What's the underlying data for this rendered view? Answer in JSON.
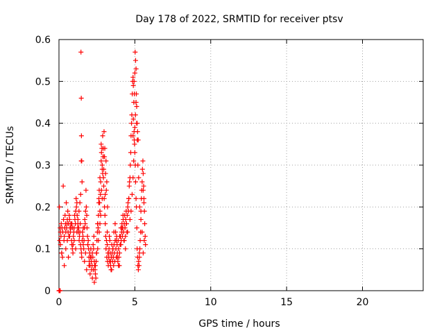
{
  "chart_data": {
    "type": "scatter",
    "title": "Day 178 of 2022, SRMTID for receiver ptsv",
    "xlabel": "GPS time / hours",
    "ylabel": "SRMTID / TECUs",
    "xlim": [
      0,
      24
    ],
    "ylim": [
      0,
      0.6
    ],
    "xticks": [
      0,
      5,
      10,
      15,
      20
    ],
    "xtick_labels": [
      "0",
      "5",
      "10",
      "15",
      "20"
    ],
    "yticks": [
      0,
      0.1,
      0.2,
      0.3,
      0.4,
      0.5,
      0.6
    ],
    "ytick_labels": [
      "0",
      "0.1",
      "0.2",
      "0.3",
      "0.4",
      "0.5",
      "0.6"
    ],
    "grid": true,
    "marker": "+",
    "color": "#ff0000",
    "series": [
      {
        "name": "ptsv",
        "x": [
          0.0,
          0.03,
          0.05,
          0.08,
          0.1,
          0.13,
          0.15,
          0.18,
          0.2,
          0.23,
          0.25,
          0.28,
          0.3,
          0.33,
          0.35,
          0.38,
          0.4,
          0.43,
          0.45,
          0.48,
          0.5,
          0.53,
          0.55,
          0.58,
          0.6,
          0.63,
          0.65,
          0.68,
          0.7,
          0.73,
          0.75,
          0.78,
          0.8,
          0.83,
          0.85,
          0.88,
          0.9,
          0.93,
          0.95,
          0.98,
          1.0,
          1.03,
          1.05,
          1.08,
          1.1,
          1.13,
          1.15,
          1.18,
          1.2,
          1.23,
          1.25,
          1.28,
          1.3,
          1.33,
          1.35,
          1.38,
          1.4,
          1.42,
          1.45,
          1.48,
          1.5,
          1.53,
          1.55,
          1.58,
          1.6,
          1.63,
          1.65,
          1.68,
          1.7,
          1.73,
          1.75,
          1.78,
          1.8,
          1.83,
          1.85,
          1.88,
          1.9,
          1.93,
          1.95,
          1.98,
          2.0,
          2.03,
          2.05,
          2.08,
          2.1,
          2.13,
          2.15,
          2.18,
          2.2,
          2.23,
          2.25,
          2.28,
          2.3,
          2.33,
          2.35,
          2.38,
          2.4,
          2.43,
          2.45,
          2.48,
          2.5,
          2.53,
          2.55,
          2.58,
          2.6,
          2.63,
          2.65,
          2.68,
          2.7,
          2.73,
          2.75,
          2.78,
          2.8,
          2.83,
          2.85,
          2.88,
          2.9,
          2.93,
          2.95,
          2.98,
          3.0,
          3.03,
          3.05,
          3.08,
          3.1,
          3.13,
          3.15,
          3.18,
          3.2,
          3.23,
          3.25,
          3.28,
          3.3,
          3.33,
          3.35,
          3.38,
          3.4,
          3.43,
          3.45,
          3.48,
          3.5,
          3.53,
          3.55,
          3.58,
          3.6,
          3.63,
          3.65,
          3.68,
          3.7,
          3.73,
          3.75,
          3.78,
          3.8,
          3.83,
          3.85,
          3.88,
          3.9,
          3.93,
          3.95,
          3.98,
          4.0,
          4.03,
          4.05,
          4.08,
          4.1,
          4.13,
          4.15,
          4.18,
          4.2,
          4.23,
          4.25,
          4.28,
          4.3,
          4.33,
          4.35,
          4.38,
          4.4,
          4.43,
          4.45,
          4.48,
          4.5,
          4.53,
          4.55,
          4.58,
          4.6,
          4.63,
          4.65,
          4.68,
          4.7,
          4.73,
          4.75,
          4.78,
          4.8,
          4.83,
          4.85,
          4.88,
          4.9,
          4.93,
          4.95,
          4.98,
          5.0,
          5.03,
          5.05,
          5.08,
          5.1,
          5.13,
          5.15,
          5.18,
          5.2,
          5.23,
          5.25,
          5.28,
          5.3,
          5.33,
          5.35,
          5.38,
          5.4,
          5.43,
          5.45,
          5.48,
          5.5,
          5.53,
          5.55,
          5.58,
          5.6,
          5.63,
          5.65,
          5.68,
          5.7,
          0.1,
          0.18,
          0.35,
          0.45,
          0.55,
          0.62,
          0.7,
          0.78,
          0.85,
          0.92,
          1.0,
          1.1,
          1.18,
          1.25,
          1.32,
          1.38,
          1.43,
          1.47,
          1.52,
          1.6,
          1.68,
          1.75,
          1.82,
          1.9,
          1.98,
          2.05,
          2.12,
          2.2,
          2.27,
          2.33,
          2.4,
          2.47,
          2.55,
          2.62,
          2.7,
          2.78,
          2.85,
          2.92,
          2.97,
          3.02,
          3.07,
          3.12,
          3.18,
          3.25,
          3.32,
          3.4,
          3.47,
          3.55,
          3.62,
          3.7,
          3.78,
          3.85,
          3.92,
          4.0,
          4.08,
          4.15,
          4.22,
          4.3,
          4.38,
          4.45,
          4.52,
          4.6,
          4.68,
          4.75,
          4.82,
          4.88,
          4.92,
          4.96,
          5.0,
          5.04,
          5.08,
          5.12,
          5.16,
          5.2,
          5.25,
          5.32,
          5.4,
          5.48,
          5.55,
          5.62,
          1.45,
          1.47,
          1.48,
          1.5,
          4.95,
          4.97,
          5.0,
          5.02,
          5.05,
          5.08,
          5.1,
          5.12,
          5.15,
          5.18,
          5.22,
          4.9,
          4.88,
          5.3,
          5.55,
          5.6,
          2.88,
          2.92,
          2.95,
          3.0,
          3.05,
          3.1,
          3.15,
          2.85,
          3.2,
          2.8,
          2.75,
          2.7,
          2.65,
          2.6,
          2.55,
          0.02,
          0.04,
          0.06,
          0.08
        ],
        "y": [
          0.0,
          0.2,
          0.12,
          0.15,
          0.14,
          0.13,
          0.16,
          0.09,
          0.15,
          0.08,
          0.14,
          0.25,
          0.17,
          0.12,
          0.13,
          0.15,
          0.18,
          0.16,
          0.14,
          0.21,
          0.15,
          0.16,
          0.17,
          0.19,
          0.14,
          0.16,
          0.13,
          0.18,
          0.17,
          0.15,
          0.14,
          0.16,
          0.15,
          0.12,
          0.16,
          0.1,
          0.15,
          0.11,
          0.13,
          0.14,
          0.15,
          0.18,
          0.17,
          0.16,
          0.19,
          0.22,
          0.2,
          0.21,
          0.18,
          0.15,
          0.16,
          0.14,
          0.15,
          0.12,
          0.13,
          0.14,
          0.16,
          0.11,
          0.1,
          0.09,
          0.08,
          0.12,
          0.14,
          0.13,
          0.11,
          0.1,
          0.12,
          0.15,
          0.17,
          0.16,
          0.19,
          0.24,
          0.2,
          0.18,
          0.15,
          0.13,
          0.11,
          0.12,
          0.1,
          0.08,
          0.07,
          0.09,
          0.06,
          0.08,
          0.1,
          0.07,
          0.05,
          0.06,
          0.09,
          0.08,
          0.11,
          0.1,
          0.13,
          0.07,
          0.06,
          0.05,
          0.04,
          0.03,
          0.07,
          0.09,
          0.12,
          0.14,
          0.16,
          0.15,
          0.18,
          0.22,
          0.24,
          0.21,
          0.19,
          0.23,
          0.26,
          0.31,
          0.33,
          0.34,
          0.3,
          0.28,
          0.32,
          0.27,
          0.25,
          0.22,
          0.2,
          0.18,
          0.16,
          0.13,
          0.1,
          0.12,
          0.08,
          0.11,
          0.07,
          0.09,
          0.06,
          0.08,
          0.1,
          0.07,
          0.12,
          0.09,
          0.06,
          0.05,
          0.08,
          0.11,
          0.09,
          0.07,
          0.1,
          0.08,
          0.06,
          0.11,
          0.09,
          0.07,
          0.12,
          0.14,
          0.1,
          0.08,
          0.13,
          0.11,
          0.09,
          0.07,
          0.12,
          0.1,
          0.08,
          0.06,
          0.09,
          0.11,
          0.13,
          0.15,
          0.12,
          0.14,
          0.16,
          0.13,
          0.15,
          0.17,
          0.14,
          0.12,
          0.16,
          0.18,
          0.15,
          0.13,
          0.17,
          0.19,
          0.16,
          0.14,
          0.18,
          0.2,
          0.21,
          0.19,
          0.22,
          0.25,
          0.26,
          0.27,
          0.3,
          0.33,
          0.37,
          0.4,
          0.42,
          0.47,
          0.5,
          0.51,
          0.49,
          0.45,
          0.38,
          0.35,
          0.33,
          0.3,
          0.26,
          0.22,
          0.2,
          0.15,
          0.1,
          0.08,
          0.06,
          0.05,
          0.07,
          0.06,
          0.08,
          0.1,
          0.12,
          0.14,
          0.19,
          0.22,
          0.24,
          0.26,
          0.29,
          0.31,
          0.28,
          0.25,
          0.22,
          0.19,
          0.16,
          0.13,
          0.11,
          0.11,
          0.09,
          0.06,
          0.1,
          0.12,
          0.08,
          0.13,
          0.16,
          0.11,
          0.09,
          0.12,
          0.1,
          0.14,
          0.17,
          0.19,
          0.21,
          0.23,
          0.31,
          0.26,
          0.15,
          0.07,
          0.09,
          0.05,
          0.11,
          0.06,
          0.04,
          0.08,
          0.03,
          0.05,
          0.02,
          0.06,
          0.09,
          0.16,
          0.21,
          0.27,
          0.35,
          0.29,
          0.32,
          0.38,
          0.34,
          0.28,
          0.24,
          0.14,
          0.09,
          0.13,
          0.07,
          0.05,
          0.1,
          0.14,
          0.16,
          0.12,
          0.08,
          0.06,
          0.13,
          0.11,
          0.15,
          0.18,
          0.12,
          0.1,
          0.16,
          0.14,
          0.22,
          0.17,
          0.19,
          0.23,
          0.27,
          0.31,
          0.36,
          0.39,
          0.42,
          0.45,
          0.4,
          0.36,
          0.3,
          0.27,
          0.2,
          0.17,
          0.14,
          0.09,
          0.12,
          0.57,
          0.46,
          0.37,
          0.31,
          0.5,
          0.47,
          0.52,
          0.57,
          0.55,
          0.53,
          0.47,
          0.44,
          0.4,
          0.38,
          0.36,
          0.41,
          0.37,
          0.09,
          0.24,
          0.21,
          0.37,
          0.34,
          0.29,
          0.32,
          0.23,
          0.31,
          0.26,
          0.22,
          0.2,
          0.24,
          0.18,
          0.16,
          0.14,
          0.12,
          0.1,
          0.0,
          0.0,
          0.0,
          0.0
        ]
      }
    ]
  }
}
